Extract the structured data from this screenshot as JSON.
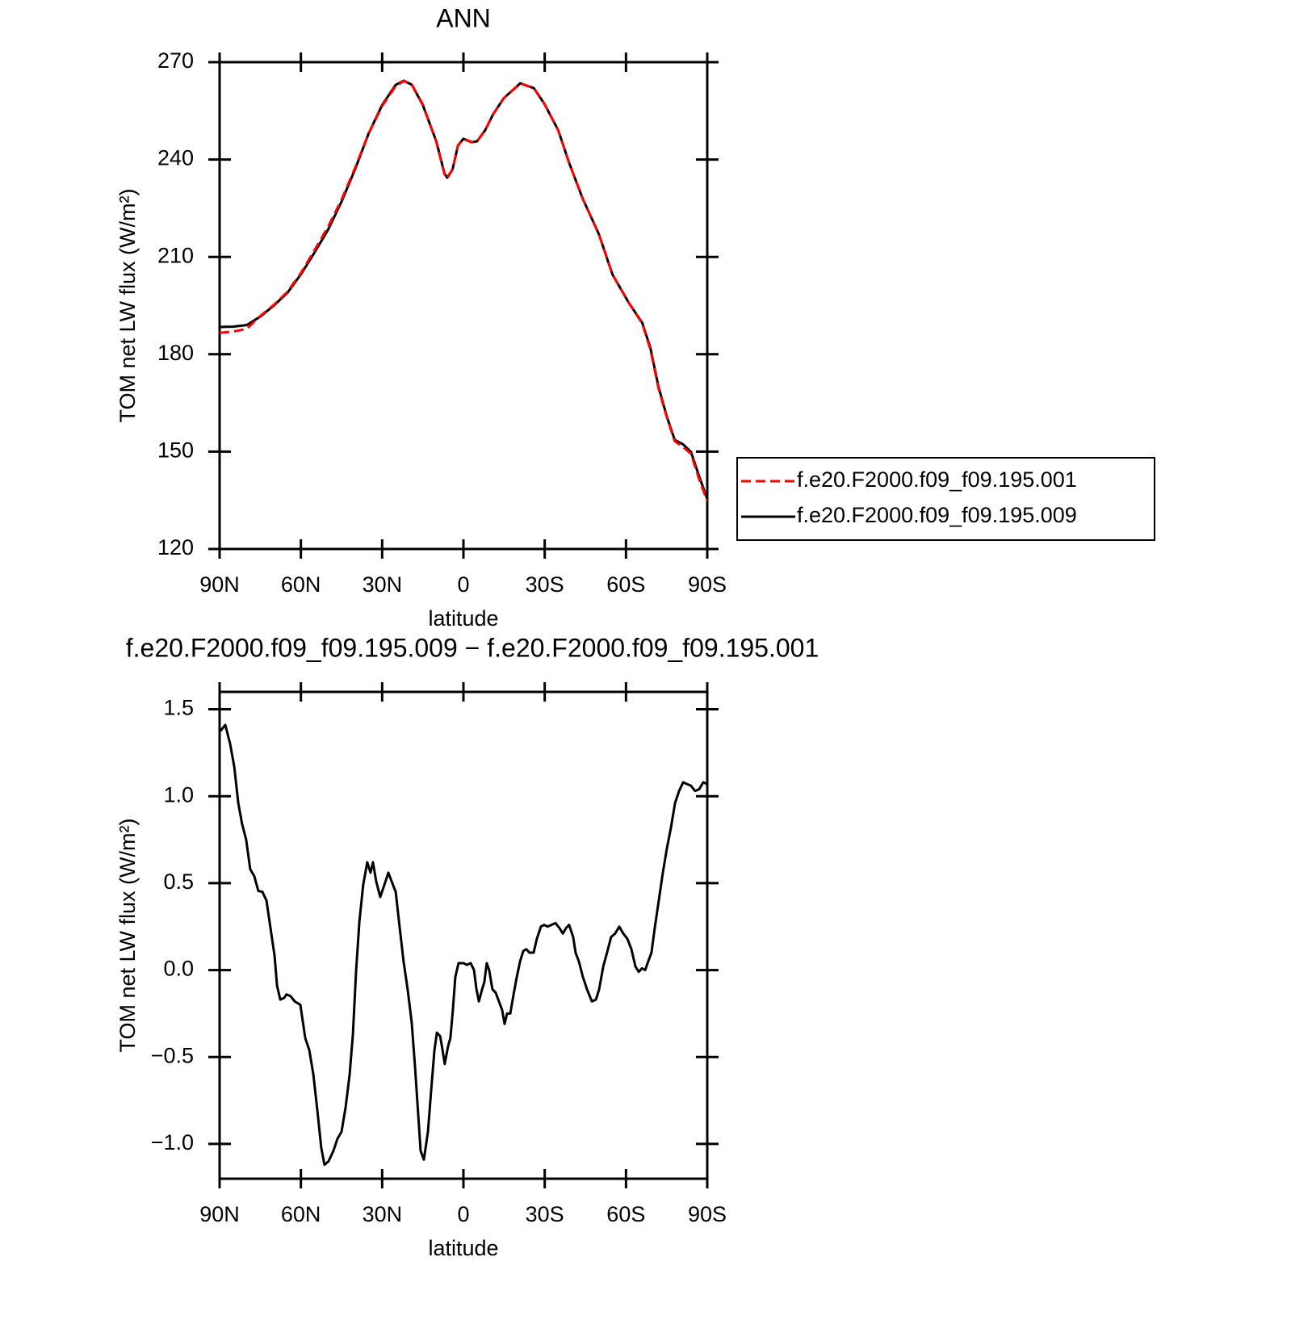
{
  "chart_data": [
    {
      "type": "line",
      "title": "ANN",
      "xlabel": "latitude",
      "ylabel": "TOM net LW flux (W/m²)",
      "xlim": [
        90,
        -90
      ],
      "xticks": [
        {
          "value": 90,
          "label": "90N"
        },
        {
          "value": 60,
          "label": "60N"
        },
        {
          "value": 30,
          "label": "30N"
        },
        0,
        {
          "value": -30,
          "label": "30S"
        },
        {
          "value": -60,
          "label": "60S"
        },
        {
          "value": -90,
          "label": "90S"
        }
      ],
      "ylim": [
        120,
        270
      ],
      "yticks": [
        120,
        150,
        180,
        210,
        240,
        270
      ],
      "legend": "right",
      "x": [
        90,
        85,
        80,
        75,
        70,
        65,
        60,
        55,
        50,
        45,
        40,
        35,
        30,
        25,
        22,
        19,
        15,
        10,
        7,
        6,
        4,
        2,
        0,
        -3,
        -5,
        -8,
        -11,
        -15,
        -21,
        -26,
        -30,
        -35,
        -39,
        -44,
        -50,
        -55,
        -61,
        -66,
        -69,
        -72,
        -75,
        -78,
        -81,
        -84,
        -87,
        -90
      ],
      "series": [
        {
          "name": "f.e20.F2000.f09_f09.195.001",
          "color": "#ff0000",
          "line_style": "dashed",
          "values": [
            186.6,
            187,
            187.8,
            191.8,
            195.2,
            199.2,
            205,
            212,
            219.2,
            227.6,
            237.4,
            248,
            256.5,
            262.6,
            264.2,
            263,
            257,
            245.4,
            235.5,
            234.2,
            237,
            244.3,
            246.3,
            245.3,
            245.5,
            249,
            254,
            259,
            263.4,
            262,
            257,
            249,
            239,
            228,
            217,
            204.6,
            195.9,
            189.5,
            181.5,
            169.5,
            160.8,
            153.2,
            151.5,
            149.3,
            141.5,
            134.8
          ]
        },
        {
          "name": "f.e20.F2000.f09_f09.195.009",
          "color": "#000000",
          "line_style": "solid",
          "values": [
            188.4,
            188.5,
            189,
            191.6,
            195,
            198.9,
            204.6,
            211.3,
            218.3,
            227,
            237,
            248,
            256.8,
            263,
            264.3,
            263,
            256.8,
            245.6,
            235.7,
            234.4,
            237,
            244.4,
            246.4,
            245.4,
            245.6,
            249,
            254,
            259,
            263.5,
            262,
            257,
            249,
            239,
            228,
            217,
            204.6,
            195.9,
            189.7,
            182,
            170,
            161,
            153.6,
            152.3,
            149.9,
            142.4,
            135.4
          ]
        }
      ]
    },
    {
      "type": "line",
      "title": "f.e20.F2000.f09_f09.195.009 − f.e20.F2000.f09_f09.195.001",
      "xlabel": "latitude",
      "ylabel": "TOM net LW flux (W/m²)",
      "xlim": [
        90,
        -90
      ],
      "xticks": [
        {
          "value": 90,
          "label": "90N"
        },
        {
          "value": 60,
          "label": "60N"
        },
        {
          "value": 30,
          "label": "30N"
        },
        0,
        {
          "value": -30,
          "label": "30S"
        },
        {
          "value": -60,
          "label": "60S"
        },
        {
          "value": -90,
          "label": "90S"
        }
      ],
      "ylim": [
        -1.2,
        1.6
      ],
      "yticks": [
        {
          "value": -1,
          "label": "−1.0"
        },
        {
          "value": -0.5,
          "label": "−0.5"
        },
        {
          "value": 0,
          "label": "0.0"
        },
        0.5,
        {
          "value": 1,
          "label": "1.0"
        },
        1.5
      ],
      "x": [
        89.7,
        87.9,
        86.1,
        84.6,
        83.1,
        81.7,
        80.2,
        78.7,
        77.2,
        75.7,
        74.2,
        72.7,
        71.2,
        69.7,
        68.8,
        67.6,
        66.2,
        65.3,
        63.8,
        62.3,
        60.2,
        58.4,
        56.9,
        55.4,
        53.9,
        52.5,
        51.3,
        49.8,
        48.0,
        46.5,
        45.0,
        43.5,
        42.0,
        40.8,
        39.6,
        38.4,
        37.0,
        35.5,
        34.3,
        33.4,
        32.2,
        30.7,
        29.2,
        27.7,
        26.5,
        25.0,
        23.5,
        22.1,
        20.6,
        19.1,
        17.9,
        16.7,
        15.8,
        14.6,
        13.1,
        11.9,
        10.7,
        9.8,
        8.6,
        7.7,
        6.9,
        5.7,
        4.8,
        3.9,
        3.0,
        1.8,
        0,
        -1.2,
        -2.7,
        -3.9,
        -4.8,
        -5.7,
        -6.9,
        -7.7,
        -8.6,
        -9.5,
        -10.7,
        -11.9,
        -13.1,
        -14.3,
        -15.2,
        -16.1,
        -17.3,
        -18.5,
        -19.7,
        -20.9,
        -22.1,
        -23.2,
        -24.4,
        -25.9,
        -27.1,
        -28.6,
        -29.8,
        -31.0,
        -32.5,
        -34.0,
        -35.5,
        -36.7,
        -37.8,
        -39.0,
        -40.5,
        -41.4,
        -42.6,
        -44.1,
        -45.6,
        -47.4,
        -48.9,
        -50.1,
        -51.6,
        -53.0,
        -54.5,
        -56.0,
        -57.5,
        -59.0,
        -60.5,
        -62.0,
        -63.5,
        -64.7,
        -65.9,
        -67.1,
        -68.2,
        -69.4,
        -70.6,
        -72.1,
        -73.6,
        -75.1,
        -76.6,
        -78.1,
        -79.6,
        -81.1,
        -82.5,
        -84.0,
        -85.5,
        -87.0,
        -88.5,
        -90.0
      ],
      "series": [
        {
          "color": "#000000",
          "line_style": "solid",
          "values": [
            1.375,
            1.41,
            1.3,
            1.17,
            0.96,
            0.84,
            0.75,
            0.58,
            0.54,
            0.455,
            0.45,
            0.4,
            0.24,
            0.08,
            -0.09,
            -0.17,
            -0.16,
            -0.14,
            -0.15,
            -0.18,
            -0.2,
            -0.39,
            -0.46,
            -0.6,
            -0.81,
            -1.02,
            -1.12,
            -1.1,
            -1.04,
            -0.97,
            -0.93,
            -0.79,
            -0.6,
            -0.37,
            0.0,
            0.28,
            0.49,
            0.62,
            0.56,
            0.62,
            0.51,
            0.42,
            0.49,
            0.56,
            0.51,
            0.45,
            0.24,
            0.05,
            -0.11,
            -0.3,
            -0.55,
            -0.83,
            -1.04,
            -1.09,
            -0.93,
            -0.69,
            -0.46,
            -0.36,
            -0.38,
            -0.46,
            -0.54,
            -0.44,
            -0.39,
            -0.23,
            -0.04,
            0.04,
            0.04,
            0.03,
            0.04,
            0.0,
            -0.11,
            -0.18,
            -0.11,
            -0.07,
            0.04,
            0.0,
            -0.11,
            -0.13,
            -0.18,
            -0.23,
            -0.31,
            -0.25,
            -0.25,
            -0.14,
            -0.04,
            0.05,
            0.11,
            0.12,
            0.1,
            0.1,
            0.18,
            0.25,
            0.26,
            0.25,
            0.26,
            0.27,
            0.24,
            0.21,
            0.24,
            0.26,
            0.19,
            0.1,
            0.05,
            -0.04,
            -0.11,
            -0.18,
            -0.17,
            -0.11,
            0.02,
            0.1,
            0.19,
            0.21,
            0.25,
            0.21,
            0.18,
            0.12,
            0.02,
            -0.01,
            0.01,
            0.0,
            0.05,
            0.1,
            0.24,
            0.4,
            0.56,
            0.7,
            0.82,
            0.96,
            1.03,
            1.08,
            1.07,
            1.06,
            1.03,
            1.04,
            1.08,
            1.07
          ]
        }
      ]
    }
  ]
}
